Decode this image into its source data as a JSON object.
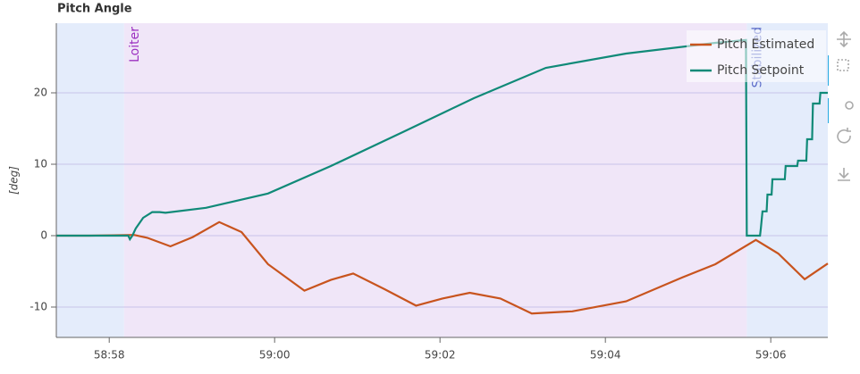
{
  "chart_data": {
    "type": "line",
    "title": "Pitch Angle",
    "y_label": "[deg]",
    "xlim": [
      3537.36,
      3546.69
    ],
    "ylim": [
      -14.25,
      29.75
    ],
    "xticks": [
      {
        "value": 3538,
        "label": "58:58"
      },
      {
        "value": 3540,
        "label": "59:00"
      },
      {
        "value": 3542,
        "label": "59:02"
      },
      {
        "value": 3544,
        "label": "59:04"
      },
      {
        "value": 3546,
        "label": "59:06"
      }
    ],
    "yticks": [
      -10,
      0,
      10,
      20
    ],
    "grid": true,
    "legend": "top-right",
    "modes": [
      {
        "start": 3537.36,
        "end": 3538.18,
        "color": "#e4ecfb",
        "label": null,
        "label_color": "#5a6ac8"
      },
      {
        "start": 3538.18,
        "end": 3545.71,
        "color": "#f0e6f8",
        "label": "Loiter",
        "label_color": "#9b30c0"
      },
      {
        "start": 3545.71,
        "end": 3546.69,
        "color": "#e4ecfb",
        "label": "Stabilized",
        "label_color": "#5a6ac8"
      }
    ],
    "series": [
      {
        "name": "Pitch Estimated",
        "color": "#c8541e",
        "x": [
          3537.36,
          3537.76,
          3538.3,
          3538.46,
          3538.74,
          3539.01,
          3539.33,
          3539.6,
          3539.92,
          3540.36,
          3540.68,
          3540.95,
          3541.33,
          3541.71,
          3542.03,
          3542.36,
          3542.73,
          3543.11,
          3543.6,
          3544.25,
          3544.9,
          3545.33,
          3545.82,
          3546.09,
          3546.41,
          3546.69
        ],
        "values": [
          0,
          0,
          0.1,
          -0.3,
          -1.5,
          -0.2,
          1.9,
          0.5,
          -4,
          -7.7,
          -6.2,
          -5.3,
          -7.5,
          -9.8,
          -8.8,
          -8,
          -8.8,
          -10.9,
          -10.6,
          -9.2,
          -6,
          -4,
          -0.6,
          -2.5,
          -6.1,
          -3.9
        ]
      },
      {
        "name": "Pitch Setpoint",
        "color": "#108a78",
        "x": [
          3537.36,
          3538.23,
          3538.25,
          3538.28,
          3538.32,
          3538.41,
          3538.52,
          3538.61,
          3538.68,
          3539.17,
          3539.92,
          3540.68,
          3541.55,
          3542.41,
          3543.28,
          3544.25,
          3545.33,
          3545.7,
          3545.71,
          3545.87,
          3545.88,
          3545.9,
          3545.95,
          3545.96,
          3546.01,
          3546.02,
          3546.17,
          3546.18,
          3546.32,
          3546.33,
          3546.43,
          3546.44,
          3546.5,
          3546.51,
          3546.59,
          3546.6,
          3546.69
        ],
        "values": [
          0,
          0,
          -0.5,
          0,
          1,
          2.5,
          3.3,
          3.3,
          3.2,
          3.9,
          5.9,
          9.75,
          14.5,
          19.25,
          23.5,
          25.5,
          27,
          27.4,
          0,
          0,
          1,
          3.4,
          3.4,
          5.75,
          5.75,
          7.9,
          7.9,
          9.75,
          9.75,
          10.5,
          10.5,
          13.5,
          13.5,
          18.5,
          18.5,
          20,
          20
        ]
      }
    ]
  }
}
